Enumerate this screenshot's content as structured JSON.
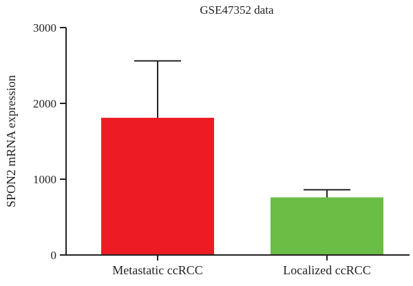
{
  "chart_data": {
    "type": "bar",
    "title": "GSE47352 data",
    "xlabel": "",
    "ylabel": "SPON2 mRNA expression",
    "ylim": [
      0,
      3000
    ],
    "yticks": [
      0,
      1000,
      2000,
      3000
    ],
    "categories": [
      "Metastatic ccRCC",
      "Localized ccRCC"
    ],
    "values": [
      1810,
      760
    ],
    "error_upper": [
      2560,
      860
    ],
    "colors": [
      "#ed1c24",
      "#6abd45"
    ],
    "grid": false,
    "legend": "none"
  }
}
